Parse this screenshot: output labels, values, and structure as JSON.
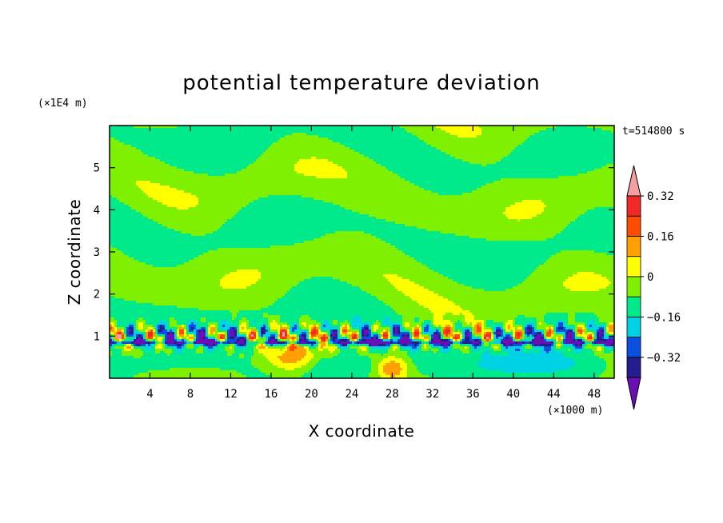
{
  "chart_data": {
    "type": "heatmap",
    "title": "potential temperature deviation",
    "xlabel": "X coordinate",
    "ylabel": "Z coordinate",
    "x_unit": "(×1000 m)",
    "y_unit": "(×1E4 m)",
    "time_label": "t=514800 s",
    "xlim": [
      0,
      50
    ],
    "ylim": [
      0,
      6
    ],
    "x_ticks": [
      4,
      8,
      12,
      16,
      20,
      24,
      28,
      32,
      36,
      40,
      44,
      48
    ],
    "y_ticks": [
      1,
      2,
      3,
      4,
      5
    ],
    "colorbar": {
      "levels": [
        -0.4,
        -0.32,
        -0.24,
        -0.16,
        -0.08,
        0,
        0.08,
        0.16,
        0.24,
        0.32,
        0.4
      ],
      "labels": [
        "-0.32",
        "-0.16",
        "0",
        "0.16",
        "0.32"
      ],
      "label_values": [
        -0.32,
        -0.16,
        0,
        0.16,
        0.32
      ],
      "colors": [
        "#6a0fb5",
        "#231d8f",
        "#0a4fe0",
        "#00d2e6",
        "#00ea8c",
        "#7ff000",
        "#ffff00",
        "#ffa000",
        "#ff4c00",
        "#f02828",
        "#f2a0a0"
      ]
    }
  }
}
